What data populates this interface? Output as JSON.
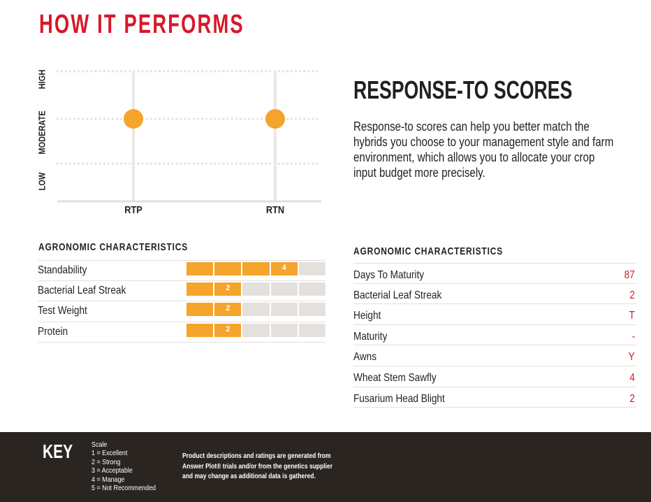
{
  "page_title": "HOW IT PERFORMS",
  "response_section": {
    "heading": "RESPONSE-TO SCORES",
    "body_lines": [
      "Response-to scores can help you better match the",
      "hybrids you choose to your management style and farm",
      "environment, which allows you to allocate your crop",
      "input budget more precisely."
    ]
  },
  "chart_data": {
    "type": "scatter",
    "categories": [
      "RTP",
      "RTN"
    ],
    "y_levels": [
      "LOW",
      "MODERATE",
      "HIGH"
    ],
    "values": [
      "MODERATE",
      "MODERATE"
    ],
    "point_color": "#f5a42c",
    "grid": true,
    "title": "",
    "xlabel": "",
    "ylabel": ""
  },
  "left_agronomic": {
    "heading": "AGRONOMIC CHARACTERISTICS",
    "scale_max": 5,
    "rows": [
      {
        "label": "Standability",
        "value": 4,
        "display": "4"
      },
      {
        "label": "Bacterial Leaf Streak",
        "value": 2,
        "display": "2"
      },
      {
        "label": "Test Weight",
        "value": 2,
        "display": "2"
      },
      {
        "label": "Protein",
        "value": 2,
        "display": "2"
      }
    ]
  },
  "right_agronomic": {
    "heading": "AGRONOMIC CHARACTERISTICS",
    "rows": [
      {
        "label": "Days To Maturity",
        "value": "87"
      },
      {
        "label": "Bacterial Leaf Streak",
        "value": "2"
      },
      {
        "label": "Height",
        "value": "T"
      },
      {
        "label": "Maturity",
        "value": "-"
      },
      {
        "label": "Awns",
        "value": "Y"
      },
      {
        "label": "Wheat Stem Sawfly",
        "value": "4"
      },
      {
        "label": "Fusarium Head Blight",
        "value": "2"
      }
    ]
  },
  "key": {
    "title": "KEY",
    "scale_lines": [
      "Scale",
      "1 = Excellent",
      "2 = Strong",
      "3 = Acceptable",
      "4 = Manage",
      "5 = Not Recommended"
    ],
    "disclaimer_lines": [
      "Product descriptions and ratings are generated from",
      "Answer Plot® trials and/or from the genetics supplier",
      "and may change as additional data is gathered."
    ]
  },
  "colors": {
    "accent_red": "#d7182a",
    "bar_orange": "#f5a42c",
    "bar_empty": "#e4e1dd",
    "footer_bg": "#2b2522"
  }
}
